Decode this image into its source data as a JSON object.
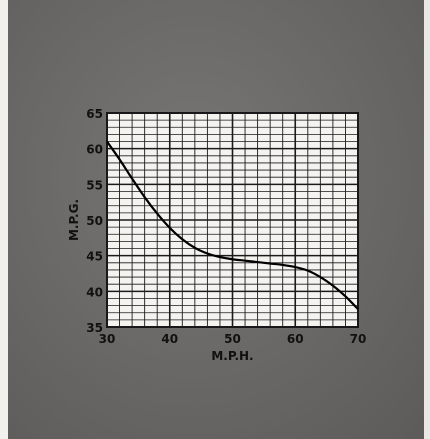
{
  "chart_data": {
    "type": "line",
    "title": "",
    "xlabel": "M.P.H.",
    "ylabel": "M.P.G.",
    "xlim": [
      30,
      70
    ],
    "ylim": [
      35,
      65
    ],
    "x_ticks": [
      30,
      40,
      50,
      60,
      70
    ],
    "y_ticks": [
      35,
      40,
      45,
      50,
      55,
      60,
      65
    ],
    "grid": true,
    "series": [
      {
        "color": "#000000",
        "x": [
          30,
          32,
          34,
          36,
          38,
          40,
          42,
          44,
          46,
          48,
          50,
          52,
          54,
          56,
          58,
          60,
          62,
          64,
          66,
          68,
          70
        ],
        "y": [
          61,
          58.5,
          55.8,
          53.2,
          50.9,
          48.9,
          47.3,
          46.1,
          45.3,
          44.8,
          44.5,
          44.3,
          44.1,
          43.9,
          43.7,
          43.4,
          42.9,
          42.0,
          40.8,
          39.3,
          37.5
        ]
      }
    ]
  }
}
